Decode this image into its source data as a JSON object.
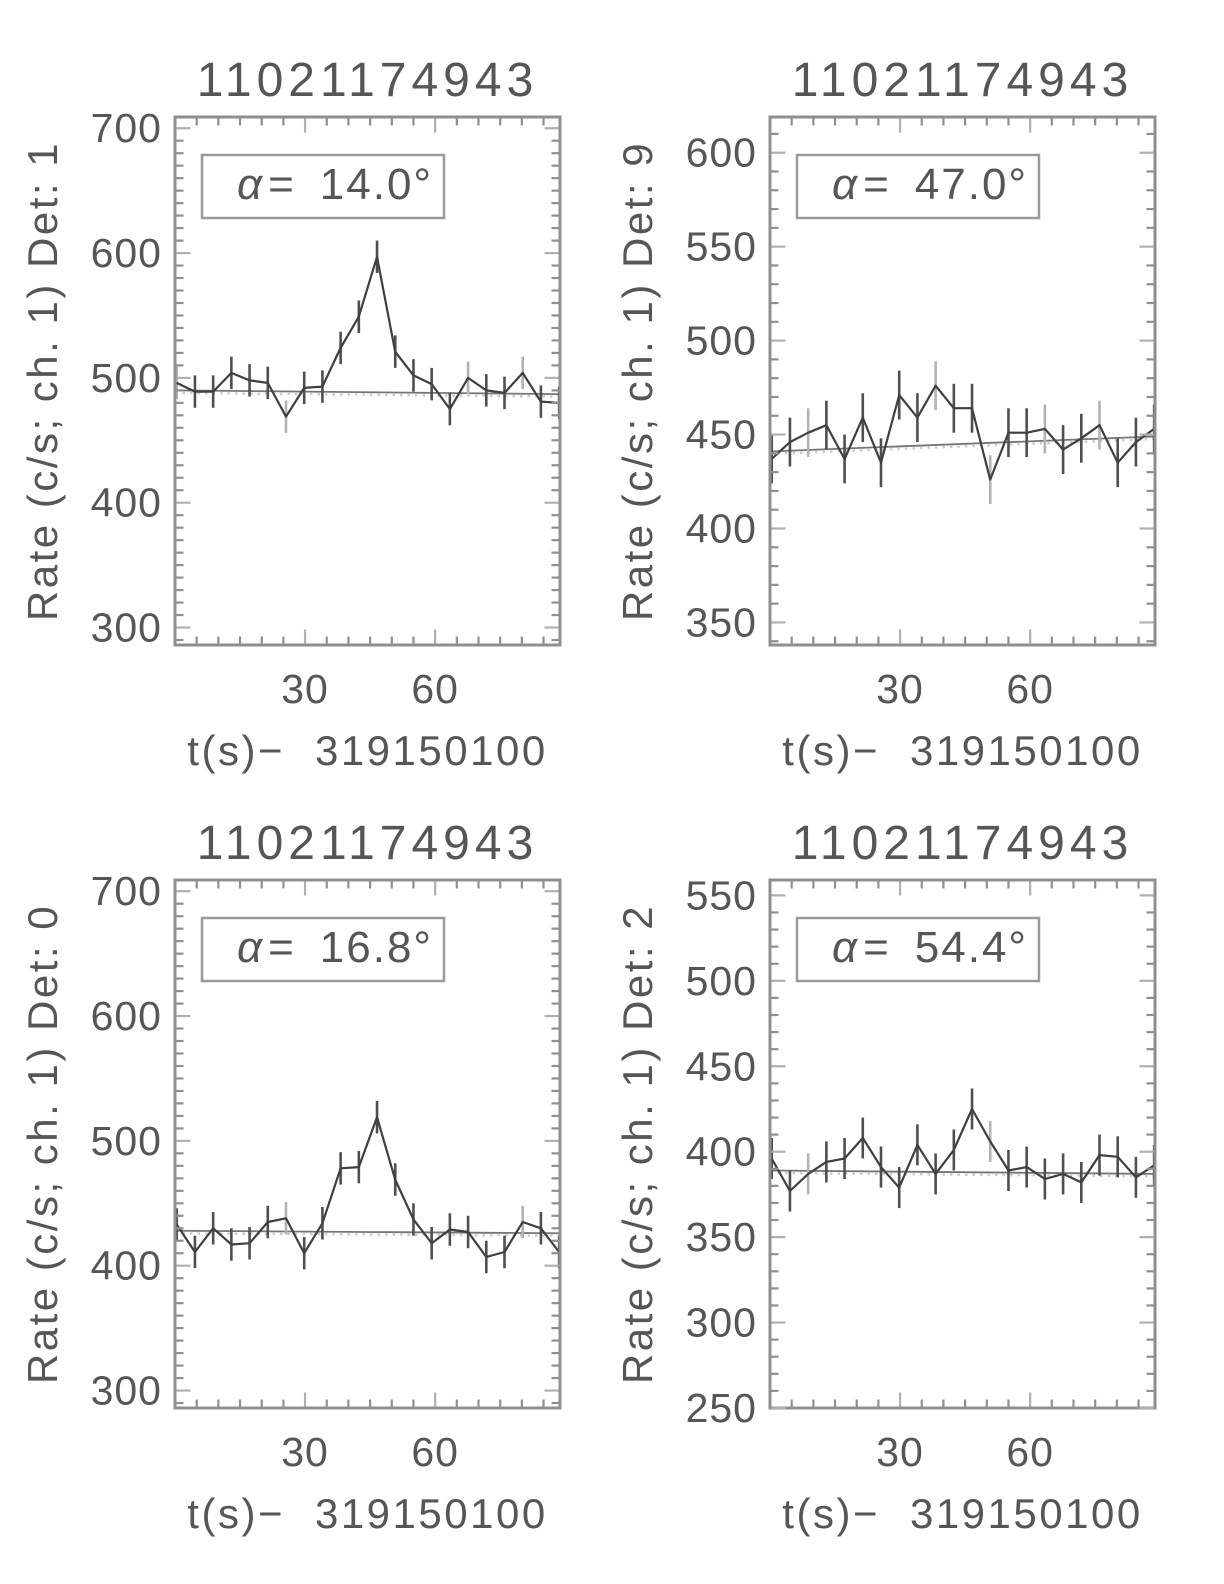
{
  "page": {
    "background": "#ffffff",
    "text_color": "#565656"
  },
  "colors": {
    "frame": "#8f8f8f",
    "tick": "#8f8f8f",
    "tick_major": "#b0b0b0",
    "text": "#565656",
    "data_line": "#3f3f3f",
    "error_bar": "#4f4f4f",
    "error_bar_light": "#b3b3b3",
    "fit_line": "#757575",
    "fit_line_dotted": "#cccccc",
    "annotation_box": "#9a9a9a",
    "background": "#ffffff"
  },
  "chart_data": [
    {
      "id": "det-1",
      "position": "top-left",
      "type": "line",
      "title": "11021174943",
      "ylabel": "Rate (c/s; ch. 1) Det: 1",
      "xlabel_prefix": "t(s)−",
      "xlabel_value": "319150100",
      "annotation": {
        "symbol": "α",
        "equals": "=",
        "value": "14.0°"
      },
      "alpha_deg": 14.0,
      "detector": 1,
      "x": [
        0.4,
        4.6,
        8.8,
        13,
        17.2,
        21.4,
        25.6,
        29.8,
        34,
        38.2,
        42.4,
        46.6,
        50.8,
        55,
        59.2,
        63.4,
        67.6,
        71.8,
        76,
        80.2,
        84.4,
        88.6
      ],
      "rate": [
        496,
        489,
        489,
        504,
        498,
        496,
        469,
        492,
        493,
        524,
        549,
        597,
        521,
        502,
        495,
        475,
        500,
        490,
        488,
        504,
        481,
        480
      ],
      "rate_error": 13,
      "fit_line": {
        "x": [
          0,
          88.8
        ],
        "rate": [
          490,
          487
        ]
      },
      "xlim": [
        0,
        88.8
      ],
      "ylim": [
        286,
        709
      ],
      "xticks": [
        30,
        60
      ],
      "xtick_labels": [
        "30",
        "60"
      ],
      "yticks": [
        300,
        400,
        500,
        600,
        700
      ],
      "ytick_labels": [
        "300",
        "400",
        "500",
        "600",
        "700"
      ],
      "x_minor_step": 5,
      "y_minor_step": 10,
      "light_error_bar_indices": [
        0,
        6,
        16,
        19
      ]
    },
    {
      "id": "det-9",
      "position": "top-right",
      "type": "line",
      "title": "11021174943",
      "ylabel": "Rate (c/s; ch. 1) Det: 9",
      "xlabel_prefix": "t(s)−",
      "xlabel_value": "319150100",
      "annotation": {
        "symbol": "α",
        "equals": "=",
        "value": "47.0°"
      },
      "alpha_deg": 47.0,
      "detector": 9,
      "x": [
        0.4,
        4.6,
        8.8,
        13,
        17.2,
        21.4,
        25.6,
        29.8,
        34,
        38.2,
        42.4,
        46.6,
        50.8,
        55,
        59.2,
        63.4,
        67.6,
        71.8,
        76,
        80.2,
        84.4,
        88.6
      ],
      "rate": [
        437,
        446,
        451,
        455,
        437,
        459,
        435,
        471,
        459,
        476,
        464,
        464,
        426,
        451,
        451,
        453,
        442,
        448,
        455,
        435,
        446,
        453
      ],
      "rate_error": 13,
      "fit_line": {
        "x": [
          0,
          88.8
        ],
        "rate": [
          441,
          449
        ]
      },
      "xlim": [
        0,
        88.8
      ],
      "ylim": [
        338,
        619
      ],
      "xticks": [
        30,
        60
      ],
      "xtick_labels": [
        "30",
        "60"
      ],
      "yticks": [
        350,
        400,
        450,
        500,
        550,
        600
      ],
      "ytick_labels": [
        "350",
        "400",
        "450",
        "500",
        "550",
        "600"
      ],
      "x_minor_step": 5,
      "y_minor_step": 10,
      "light_error_bar_indices": [
        2,
        9,
        12,
        15,
        18
      ]
    },
    {
      "id": "det-0",
      "position": "bottom-left",
      "type": "line",
      "title": "11021174943",
      "ylabel": "Rate (c/s; ch. 1) Det: 0",
      "xlabel_prefix": "t(s)−",
      "xlabel_value": "319150100",
      "annotation": {
        "symbol": "α",
        "equals": "=",
        "value": "16.8°"
      },
      "alpha_deg": 16.8,
      "detector": 0,
      "x": [
        0.4,
        4.6,
        8.8,
        13,
        17.2,
        21.4,
        25.6,
        29.8,
        34,
        38.2,
        42.4,
        46.6,
        50.8,
        55,
        59.2,
        63.4,
        67.6,
        71.8,
        76,
        80.2,
        84.4,
        88.6
      ],
      "rate": [
        433,
        411,
        430,
        417,
        418,
        435,
        438,
        410,
        434,
        478,
        479,
        519,
        469,
        437,
        418,
        429,
        427,
        407,
        411,
        435,
        430,
        411
      ],
      "rate_error": 13,
      "fit_line": {
        "x": [
          0,
          88.8
        ],
        "rate": [
          428,
          426
        ]
      },
      "xlim": [
        0,
        88.8
      ],
      "ylim": [
        286,
        709
      ],
      "xticks": [
        30,
        60
      ],
      "xtick_labels": [
        "30",
        "60"
      ],
      "yticks": [
        300,
        400,
        500,
        600,
        700
      ],
      "ytick_labels": [
        "300",
        "400",
        "500",
        "600",
        "700"
      ],
      "x_minor_step": 5,
      "y_minor_step": 10,
      "light_error_bar_indices": [
        6,
        19
      ]
    },
    {
      "id": "det-2",
      "position": "bottom-right",
      "type": "line",
      "title": "11021174943",
      "ylabel": "Rate (c/s; ch. 1) Det: 2",
      "xlabel_prefix": "t(s)−",
      "xlabel_value": "319150100",
      "annotation": {
        "symbol": "α",
        "equals": "=",
        "value": "54.4°"
      },
      "alpha_deg": 54.4,
      "detector": 2,
      "x": [
        0.4,
        4.6,
        8.8,
        13,
        17.2,
        21.4,
        25.6,
        29.8,
        34,
        38.2,
        42.4,
        46.6,
        50.8,
        55,
        59.2,
        63.4,
        67.6,
        71.8,
        76,
        80.2,
        84.4,
        88.6
      ],
      "rate": [
        396,
        377,
        387,
        394,
        396,
        408,
        391,
        379,
        404,
        387,
        401,
        425,
        406,
        389,
        391,
        384,
        387,
        382,
        398,
        397,
        385,
        392
      ],
      "rate_error": 12,
      "fit_line": {
        "x": [
          0,
          88.8
        ],
        "rate": [
          389,
          387
        ]
      },
      "xlim": [
        0,
        88.8
      ],
      "ylim": [
        250,
        559
      ],
      "xticks": [
        30,
        60
      ],
      "xtick_labels": [
        "30",
        "60"
      ],
      "yticks": [
        250,
        300,
        350,
        400,
        450,
        500,
        550
      ],
      "ytick_labels": [
        "250",
        "300",
        "350",
        "400",
        "450",
        "500",
        "550"
      ],
      "x_minor_step": 5,
      "y_minor_step": 10,
      "light_error_bar_indices": [
        2,
        12
      ]
    }
  ]
}
